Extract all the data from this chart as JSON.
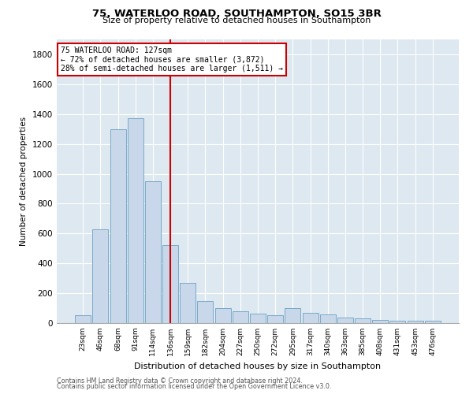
{
  "title1": "75, WATERLOO ROAD, SOUTHAMPTON, SO15 3BR",
  "title2": "Size of property relative to detached houses in Southampton",
  "xlabel": "Distribution of detached houses by size in Southampton",
  "ylabel": "Number of detached properties",
  "categories": [
    "23sqm",
    "46sqm",
    "68sqm",
    "91sqm",
    "114sqm",
    "136sqm",
    "159sqm",
    "182sqm",
    "204sqm",
    "227sqm",
    "250sqm",
    "272sqm",
    "295sqm",
    "317sqm",
    "340sqm",
    "363sqm",
    "385sqm",
    "408sqm",
    "431sqm",
    "453sqm",
    "476sqm"
  ],
  "values": [
    55,
    630,
    1300,
    1370,
    950,
    520,
    270,
    150,
    100,
    80,
    65,
    55,
    100,
    70,
    60,
    35,
    30,
    20,
    15,
    15,
    15
  ],
  "bar_color": "#c8d8ea",
  "bar_edge_color": "#7aaac8",
  "background_color": "#dde8f0",
  "grid_color": "#ffffff",
  "marker_line_color": "#cc0000",
  "annotation_line1": "75 WATERLOO ROAD: 127sqm",
  "annotation_line2": "← 72% of detached houses are smaller (3,872)",
  "annotation_line3": "28% of semi-detached houses are larger (1,511) →",
  "annotation_box_color": "#cc0000",
  "footer1": "Contains HM Land Registry data © Crown copyright and database right 2024.",
  "footer2": "Contains public sector information licensed under the Open Government Licence v3.0.",
  "ylim": [
    0,
    1900
  ],
  "yticks": [
    0,
    200,
    400,
    600,
    800,
    1000,
    1200,
    1400,
    1600,
    1800
  ]
}
